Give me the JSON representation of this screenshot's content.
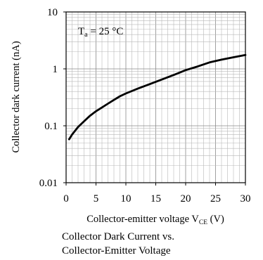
{
  "chart_data": {
    "type": "line",
    "title": "",
    "xlabel": "Collector-emitter voltage V",
    "xlabel_sub": "CE",
    "xlabel_unit": " (V)",
    "ylabel": "Collector dark current (nA)",
    "xlim": [
      0,
      30
    ],
    "ylim": [
      0.01,
      10
    ],
    "yscale": "log",
    "grid": true,
    "x_ticks": [
      "0",
      "5",
      "10",
      "15",
      "20",
      "25",
      "30"
    ],
    "y_ticks": [
      "0.01",
      "0.1",
      "1",
      "10"
    ],
    "annotation": {
      "text": "T",
      "sub": "a",
      "rest": " = 25 °C"
    },
    "series": [
      {
        "x": [
          0.5,
          1,
          2,
          3,
          4,
          5,
          6,
          7,
          8,
          9,
          10,
          12,
          14,
          16,
          18,
          20,
          22,
          24,
          26,
          28,
          30
        ],
        "y": [
          0.058,
          0.07,
          0.095,
          0.12,
          0.15,
          0.18,
          0.21,
          0.245,
          0.285,
          0.33,
          0.37,
          0.45,
          0.54,
          0.65,
          0.78,
          0.95,
          1.1,
          1.3,
          1.45,
          1.6,
          1.75
        ]
      }
    ]
  },
  "caption": {
    "line1": "Collector  Dark  Current vs.",
    "line2": "Collector-Emitter Voltage"
  }
}
